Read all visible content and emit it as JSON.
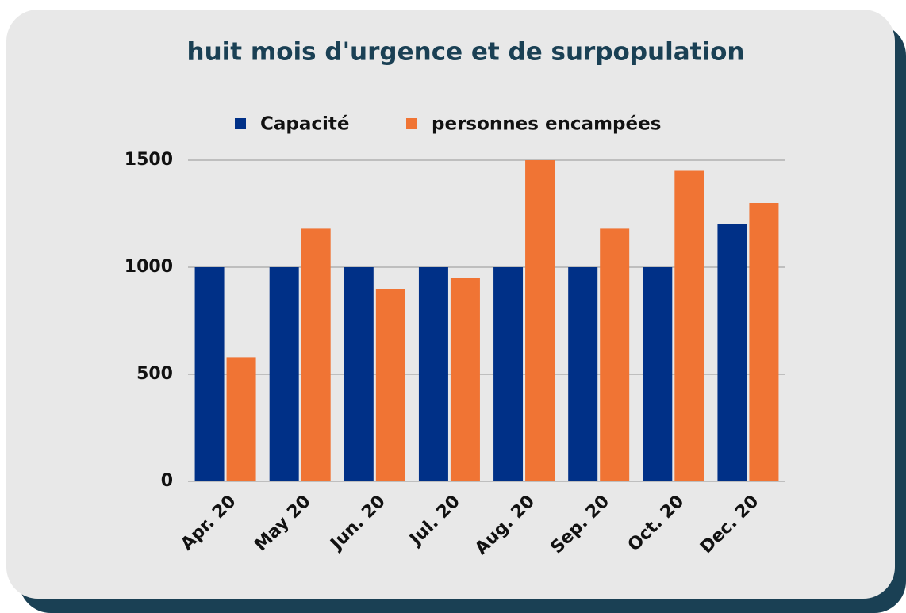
{
  "chart_data": {
    "type": "bar",
    "title": "huit mois d'urgence et de surpopulation",
    "categories": [
      "Apr. 20",
      "May 20",
      "Jun. 20",
      "Jul. 20",
      "Aug. 20",
      "Sep. 20",
      "Oct. 20",
      "Dec. 20"
    ],
    "series": [
      {
        "name": "Capacité",
        "color": "#003087",
        "values": [
          1000,
          1000,
          1000,
          1000,
          1000,
          1000,
          1000,
          1200
        ]
      },
      {
        "name": "personnes encampées",
        "color": "#f07434",
        "values": [
          580,
          1180,
          900,
          950,
          1500,
          1180,
          1450,
          1300
        ]
      }
    ],
    "ylim": [
      0,
      1500
    ],
    "yticks": [
      0,
      500,
      1000,
      1500
    ],
    "grid": true,
    "legend": "top"
  }
}
